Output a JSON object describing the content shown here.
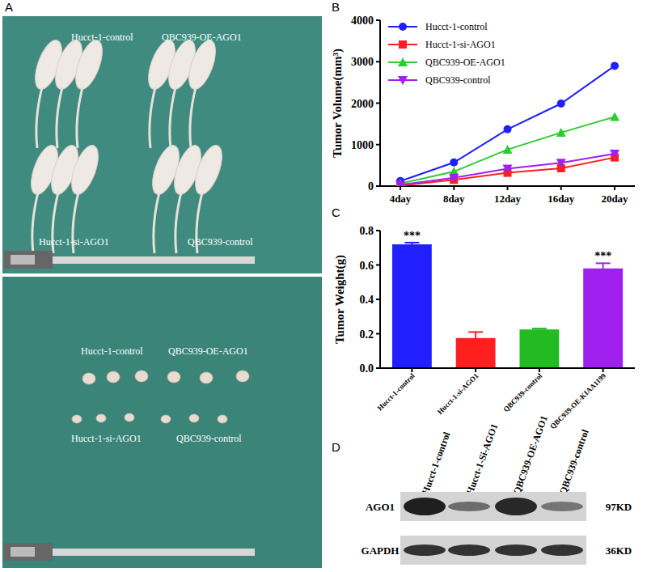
{
  "panel_labels": [
    "A",
    "B",
    "C",
    "D"
  ],
  "photo": {
    "mice_labels": [
      "Hucct-1-control",
      "QBC939-OE-AGO1",
      "Hucct-1-si-AGO1",
      "QBC939-control"
    ],
    "tumor_labels": [
      "Hucct-1-control",
      "QBC939-OE-AGO1",
      "Hucct-1-si-AGO1",
      "QBC939-control"
    ]
  },
  "chart_data": [
    {
      "type": "line",
      "y_label": "Tumor Volume(mm³)",
      "categories": [
        "4day",
        "8day",
        "12day",
        "16day",
        "20day"
      ],
      "ylim": [
        0,
        4000
      ],
      "yticks": [
        0,
        1000,
        2000,
        3000,
        4000
      ],
      "grid": false,
      "legend": "top-left",
      "series": [
        {
          "name": "Hucct-1-control",
          "color": "#1f1fff",
          "marker": "circle",
          "values": [
            120,
            570,
            1370,
            1990,
            2900
          ]
        },
        {
          "name": "Hucct-1-si-AGO1",
          "color": "#ff1f1f",
          "marker": "square",
          "values": [
            10,
            150,
            320,
            430,
            690
          ]
        },
        {
          "name": "QBC939-OE-AGO1",
          "color": "#2ecc2e",
          "marker": "triangle",
          "values": [
            60,
            350,
            880,
            1290,
            1670
          ]
        },
        {
          "name": "QBC939-control",
          "color": "#a020f0",
          "marker": "triangle-down",
          "values": [
            30,
            200,
            420,
            560,
            780
          ]
        }
      ]
    },
    {
      "type": "bar",
      "y_label": "Tumor Weight(g)",
      "categories": [
        "Hucct-1-control",
        "Hucct-1-si-AGO1",
        "QBC939-control",
        "QBC939-OE-KIAA1199"
      ],
      "values": [
        0.72,
        0.175,
        0.225,
        0.58
      ],
      "errors": [
        0.01,
        0.035,
        0.005,
        0.03
      ],
      "colors": [
        "#1f1fff",
        "#ff1f1f",
        "#22bb22",
        "#a020f0"
      ],
      "ylim": [
        0,
        0.8
      ],
      "yticks": [
        {
          "value": 0,
          "label": "0.0"
        },
        0.2,
        0.4,
        0.6,
        0.8
      ],
      "grid": false,
      "annotations": [
        {
          "text": "***",
          "category": "Hucct-1-control"
        },
        {
          "text": "***",
          "category": "QBC939-OE-KIAA1199"
        }
      ]
    }
  ],
  "blot": {
    "lanes": [
      "Hucct-1-control",
      "Hucct-1-Si-AGO1",
      "QBC939-OE-AGO1",
      "QBC939-control"
    ],
    "rows": [
      {
        "label": "AGO1",
        "size": "97KD"
      },
      {
        "label": "GAPDH",
        "size": "36KD"
      }
    ]
  }
}
